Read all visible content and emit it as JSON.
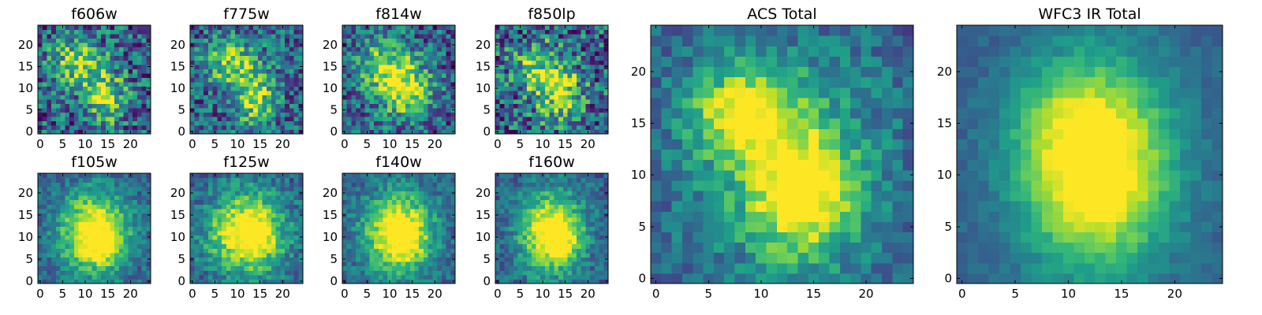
{
  "chart_data": [
    {
      "type": "heatmap",
      "title": "f606w",
      "grid_size": 25,
      "ylim": [
        0,
        24
      ],
      "xlim": [
        0,
        24
      ],
      "xticks": [
        "0",
        "5",
        "10",
        "15",
        "20"
      ],
      "yticks": [
        "0",
        "5",
        "10",
        "15",
        "20"
      ],
      "noise": 0.34,
      "components": [
        {
          "cx": 8,
          "cy": 16,
          "sx": 4.0,
          "sy": 4.0,
          "amp": 0.5
        },
        {
          "cx": 14.5,
          "cy": 8,
          "sx": 3.2,
          "sy": 4.5,
          "amp": 0.55
        }
      ]
    },
    {
      "type": "heatmap",
      "title": "f775w",
      "grid_size": 25,
      "ylim": [
        0,
        24
      ],
      "xlim": [
        0,
        24
      ],
      "xticks": [
        "0",
        "5",
        "10",
        "15",
        "20"
      ],
      "yticks": [
        "0",
        "5",
        "10",
        "15",
        "20"
      ],
      "noise": 0.3,
      "components": [
        {
          "cx": 8.5,
          "cy": 16,
          "sx": 4.0,
          "sy": 4.0,
          "amp": 0.5
        },
        {
          "cx": 14,
          "cy": 8,
          "sx": 3.5,
          "sy": 4.5,
          "amp": 0.55
        }
      ]
    },
    {
      "type": "heatmap",
      "title": "f814w",
      "grid_size": 25,
      "ylim": [
        0,
        24
      ],
      "xlim": [
        0,
        24
      ],
      "xticks": [
        "0",
        "5",
        "10",
        "15",
        "20"
      ],
      "yticks": [
        "0",
        "5",
        "10",
        "15",
        "20"
      ],
      "noise": 0.3,
      "components": [
        {
          "cx": 9,
          "cy": 15,
          "sx": 4.5,
          "sy": 4.5,
          "amp": 0.5
        },
        {
          "cx": 14,
          "cy": 9,
          "sx": 4.0,
          "sy": 4.5,
          "amp": 0.55
        }
      ]
    },
    {
      "type": "heatmap",
      "title": "f850lp",
      "grid_size": 25,
      "ylim": [
        0,
        24
      ],
      "xlim": [
        0,
        24
      ],
      "xticks": [
        "0",
        "5",
        "10",
        "15",
        "20"
      ],
      "yticks": [
        "0",
        "5",
        "10",
        "15",
        "20"
      ],
      "noise": 0.38,
      "components": [
        {
          "cx": 9,
          "cy": 15,
          "sx": 4.5,
          "sy": 4.5,
          "amp": 0.45
        },
        {
          "cx": 14,
          "cy": 8,
          "sx": 4.0,
          "sy": 4.5,
          "amp": 0.5
        }
      ]
    },
    {
      "type": "heatmap",
      "title": "f105w",
      "grid_size": 25,
      "ylim": [
        0,
        24
      ],
      "xlim": [
        0,
        24
      ],
      "xticks": [
        "0",
        "5",
        "10",
        "15",
        "20"
      ],
      "yticks": [
        "0",
        "5",
        "10",
        "15",
        "20"
      ],
      "noise": 0.16,
      "components": [
        {
          "cx": 12,
          "cy": 11,
          "sx": 5.5,
          "sy": 6.5,
          "amp": 0.8
        },
        {
          "cx": 14,
          "cy": 8,
          "sx": 2.5,
          "sy": 3.0,
          "amp": 0.2
        }
      ]
    },
    {
      "type": "heatmap",
      "title": "f125w",
      "grid_size": 25,
      "ylim": [
        0,
        24
      ],
      "xlim": [
        0,
        24
      ],
      "xticks": [
        "0",
        "5",
        "10",
        "15",
        "20"
      ],
      "yticks": [
        "0",
        "5",
        "10",
        "15",
        "20"
      ],
      "noise": 0.18,
      "components": [
        {
          "cx": 12,
          "cy": 11,
          "sx": 6.0,
          "sy": 6.5,
          "amp": 0.8
        },
        {
          "cx": 14,
          "cy": 10,
          "sx": 2.5,
          "sy": 3.0,
          "amp": 0.2
        }
      ]
    },
    {
      "type": "heatmap",
      "title": "f140w",
      "grid_size": 25,
      "ylim": [
        0,
        24
      ],
      "xlim": [
        0,
        24
      ],
      "xticks": [
        "0",
        "5",
        "10",
        "15",
        "20"
      ],
      "yticks": [
        "0",
        "5",
        "10",
        "15",
        "20"
      ],
      "noise": 0.16,
      "components": [
        {
          "cx": 12,
          "cy": 11,
          "sx": 5.5,
          "sy": 6.5,
          "amp": 0.8
        },
        {
          "cx": 13.5,
          "cy": 9,
          "sx": 2.5,
          "sy": 3.0,
          "amp": 0.2
        }
      ]
    },
    {
      "type": "heatmap",
      "title": "f160w",
      "grid_size": 25,
      "ylim": [
        0,
        24
      ],
      "xlim": [
        0,
        24
      ],
      "xticks": [
        "0",
        "5",
        "10",
        "15",
        "20"
      ],
      "yticks": [
        "0",
        "5",
        "10",
        "15",
        "20"
      ],
      "noise": 0.16,
      "components": [
        {
          "cx": 12,
          "cy": 11,
          "sx": 5.0,
          "sy": 6.5,
          "amp": 0.8
        },
        {
          "cx": 14,
          "cy": 10,
          "sx": 2.5,
          "sy": 3.0,
          "amp": 0.25
        }
      ]
    },
    {
      "type": "heatmap",
      "title": "ACS Total",
      "grid_size": 25,
      "ylim": [
        0,
        24
      ],
      "xlim": [
        0,
        24
      ],
      "xticks": [
        "0",
        "5",
        "10",
        "15",
        "20"
      ],
      "yticks": [
        "0",
        "5",
        "10",
        "15",
        "20"
      ],
      "noise": 0.16,
      "components": [
        {
          "cx": 8.5,
          "cy": 16,
          "sx": 3.5,
          "sy": 3.0,
          "amp": 0.55
        },
        {
          "cx": 14,
          "cy": 8,
          "sx": 3.5,
          "sy": 4.0,
          "amp": 0.65
        },
        {
          "cx": 12,
          "cy": 12,
          "sx": 7.0,
          "sy": 8.0,
          "amp": 0.3
        }
      ]
    },
    {
      "type": "heatmap",
      "title": "WFC3 IR Total",
      "grid_size": 25,
      "ylim": [
        0,
        24
      ],
      "xlim": [
        0,
        24
      ],
      "xticks": [
        "0",
        "5",
        "10",
        "15",
        "20"
      ],
      "yticks": [
        "0",
        "5",
        "10",
        "15",
        "20"
      ],
      "noise": 0.07,
      "components": [
        {
          "cx": 12.5,
          "cy": 11,
          "sx": 5.0,
          "sy": 7.0,
          "amp": 0.9
        },
        {
          "cx": 8,
          "cy": 16,
          "sx": 3.0,
          "sy": 3.0,
          "amp": 0.1
        }
      ]
    }
  ],
  "colormap": [
    "#440154",
    "#482878",
    "#3e4989",
    "#31688e",
    "#26828e",
    "#1f9e89",
    "#35b779",
    "#6ece58",
    "#b5de2b",
    "#fde725"
  ]
}
